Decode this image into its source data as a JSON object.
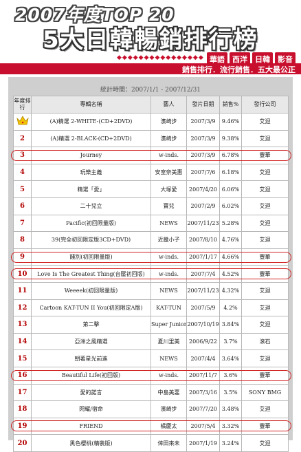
{
  "header": {
    "year_line": "2007年度TOP 20",
    "big_title": "5大日韓暢銷排行榜",
    "categories": [
      "華語",
      "西洋",
      "日韓",
      "影音"
    ],
    "slogan": "銷售排行．流行銷售．五大最公正"
  },
  "stat_time": "統計時間：2007/1/1 - 2007/12/31",
  "table": {
    "headers": [
      "年度排行",
      "專輯名稱",
      "藝人",
      "發片日期",
      "銷售%",
      "發行公司"
    ],
    "rows": [
      {
        "rank": "1",
        "album": "(A)精選 2-WHITE-(CD+2DVD)",
        "artist": "濱崎步",
        "date": "2007/3/9",
        "share": "9.46%",
        "label": "艾迴",
        "highlight": false,
        "crown": true
      },
      {
        "rank": "2",
        "album": "(A)精選 2-BLACK-(CD+2DVD)",
        "artist": "濱崎步",
        "date": "2007/3/9",
        "share": "9.38%",
        "label": "艾迴",
        "highlight": false
      },
      {
        "rank": "3",
        "album": "Journey",
        "artist": "w-inds.",
        "date": "2007/3/9",
        "share": "6.78%",
        "label": "豐華",
        "highlight": true
      },
      {
        "rank": "4",
        "album": "玩樂主義",
        "artist": "安室奈美惠",
        "date": "2007/7/6",
        "share": "6.18%",
        "label": "艾迴",
        "highlight": false
      },
      {
        "rank": "5",
        "album": "精選「愛」",
        "artist": "大塚愛",
        "date": "2007/4/20",
        "share": "6.06%",
        "label": "艾迴",
        "highlight": false
      },
      {
        "rank": "6",
        "album": "二十兒立",
        "artist": "寶兒",
        "date": "2007/2/9",
        "share": "6.02%",
        "label": "艾迴",
        "highlight": false
      },
      {
        "rank": "7",
        "album": "Pacific(初回限量版)",
        "artist": "NEWS",
        "date": "2007/11/23",
        "share": "5.28%",
        "label": "艾迴",
        "highlight": false
      },
      {
        "rank": "8",
        "album": "39(完全初回限定版3CD+DVD)",
        "artist": "近畿小子",
        "date": "2007/8/10",
        "share": "4.76%",
        "label": "艾迴",
        "highlight": false
      },
      {
        "rank": "9",
        "album": "餞別(初回限量版)",
        "artist": "w-inds.",
        "date": "2007/1/17",
        "share": "4.66%",
        "label": "豐華",
        "highlight": true
      },
      {
        "rank": "10",
        "album": "Love Is The Greatest Thing(台壓初回版)",
        "artist": "w-inds.",
        "date": "2007/7/4",
        "share": "4.52%",
        "label": "豐華",
        "highlight": true
      },
      {
        "rank": "11",
        "album": "Weeeek(初回限量版)",
        "artist": "NEWS",
        "date": "2007/11/23",
        "share": "4.32%",
        "label": "艾迴",
        "highlight": false
      },
      {
        "rank": "12",
        "album": "Cartoon KAT-TUN II You(初回限定A版)",
        "artist": "KAT-TUN",
        "date": "2007/5/9",
        "share": "4.2%",
        "label": "艾迴",
        "highlight": false
      },
      {
        "rank": "13",
        "album": "第二擊",
        "artist": "Super Junior",
        "date": "2007/10/19",
        "share": "3.84%",
        "label": "艾迴",
        "highlight": false
      },
      {
        "rank": "14",
        "album": "亞洲之風精選",
        "artist": "夏川里美",
        "date": "2006/9/22",
        "share": "3.7%",
        "label": "滾石",
        "highlight": false
      },
      {
        "rank": "15",
        "album": "朝著星光前進",
        "artist": "NEWS",
        "date": "2007/4/4",
        "share": "3.64%",
        "label": "艾迴",
        "highlight": false
      },
      {
        "rank": "16",
        "album": "Beautiful Life(初回版)",
        "artist": "w-inds.",
        "date": "2007/11/7",
        "share": "3.6%",
        "label": "豐華",
        "highlight": true
      },
      {
        "rank": "17",
        "album": "愛的諾言",
        "artist": "中島美嘉",
        "date": "2007/3/16",
        "share": "3.5%",
        "label": "SONY BMG",
        "highlight": false
      },
      {
        "rank": "18",
        "album": "閃耀/宿命",
        "artist": "濱崎步",
        "date": "2007/7/20",
        "share": "3.48%",
        "label": "艾迴",
        "highlight": false
      },
      {
        "rank": "19",
        "album": "FRIEND",
        "artist": "橘慶太",
        "date": "2007/5/4",
        "share": "3.32%",
        "label": "豐華",
        "highlight": true
      },
      {
        "rank": "20",
        "album": "黑色櫻桃(精裝版)",
        "artist": "倖田來未",
        "date": "2007/1/19",
        "share": "3.24%",
        "label": "艾迴",
        "highlight": false
      }
    ]
  },
  "colors": {
    "accent_red": "#c8102e",
    "panel_gray": "#cfcfcf",
    "rank_red": "#b30000"
  }
}
